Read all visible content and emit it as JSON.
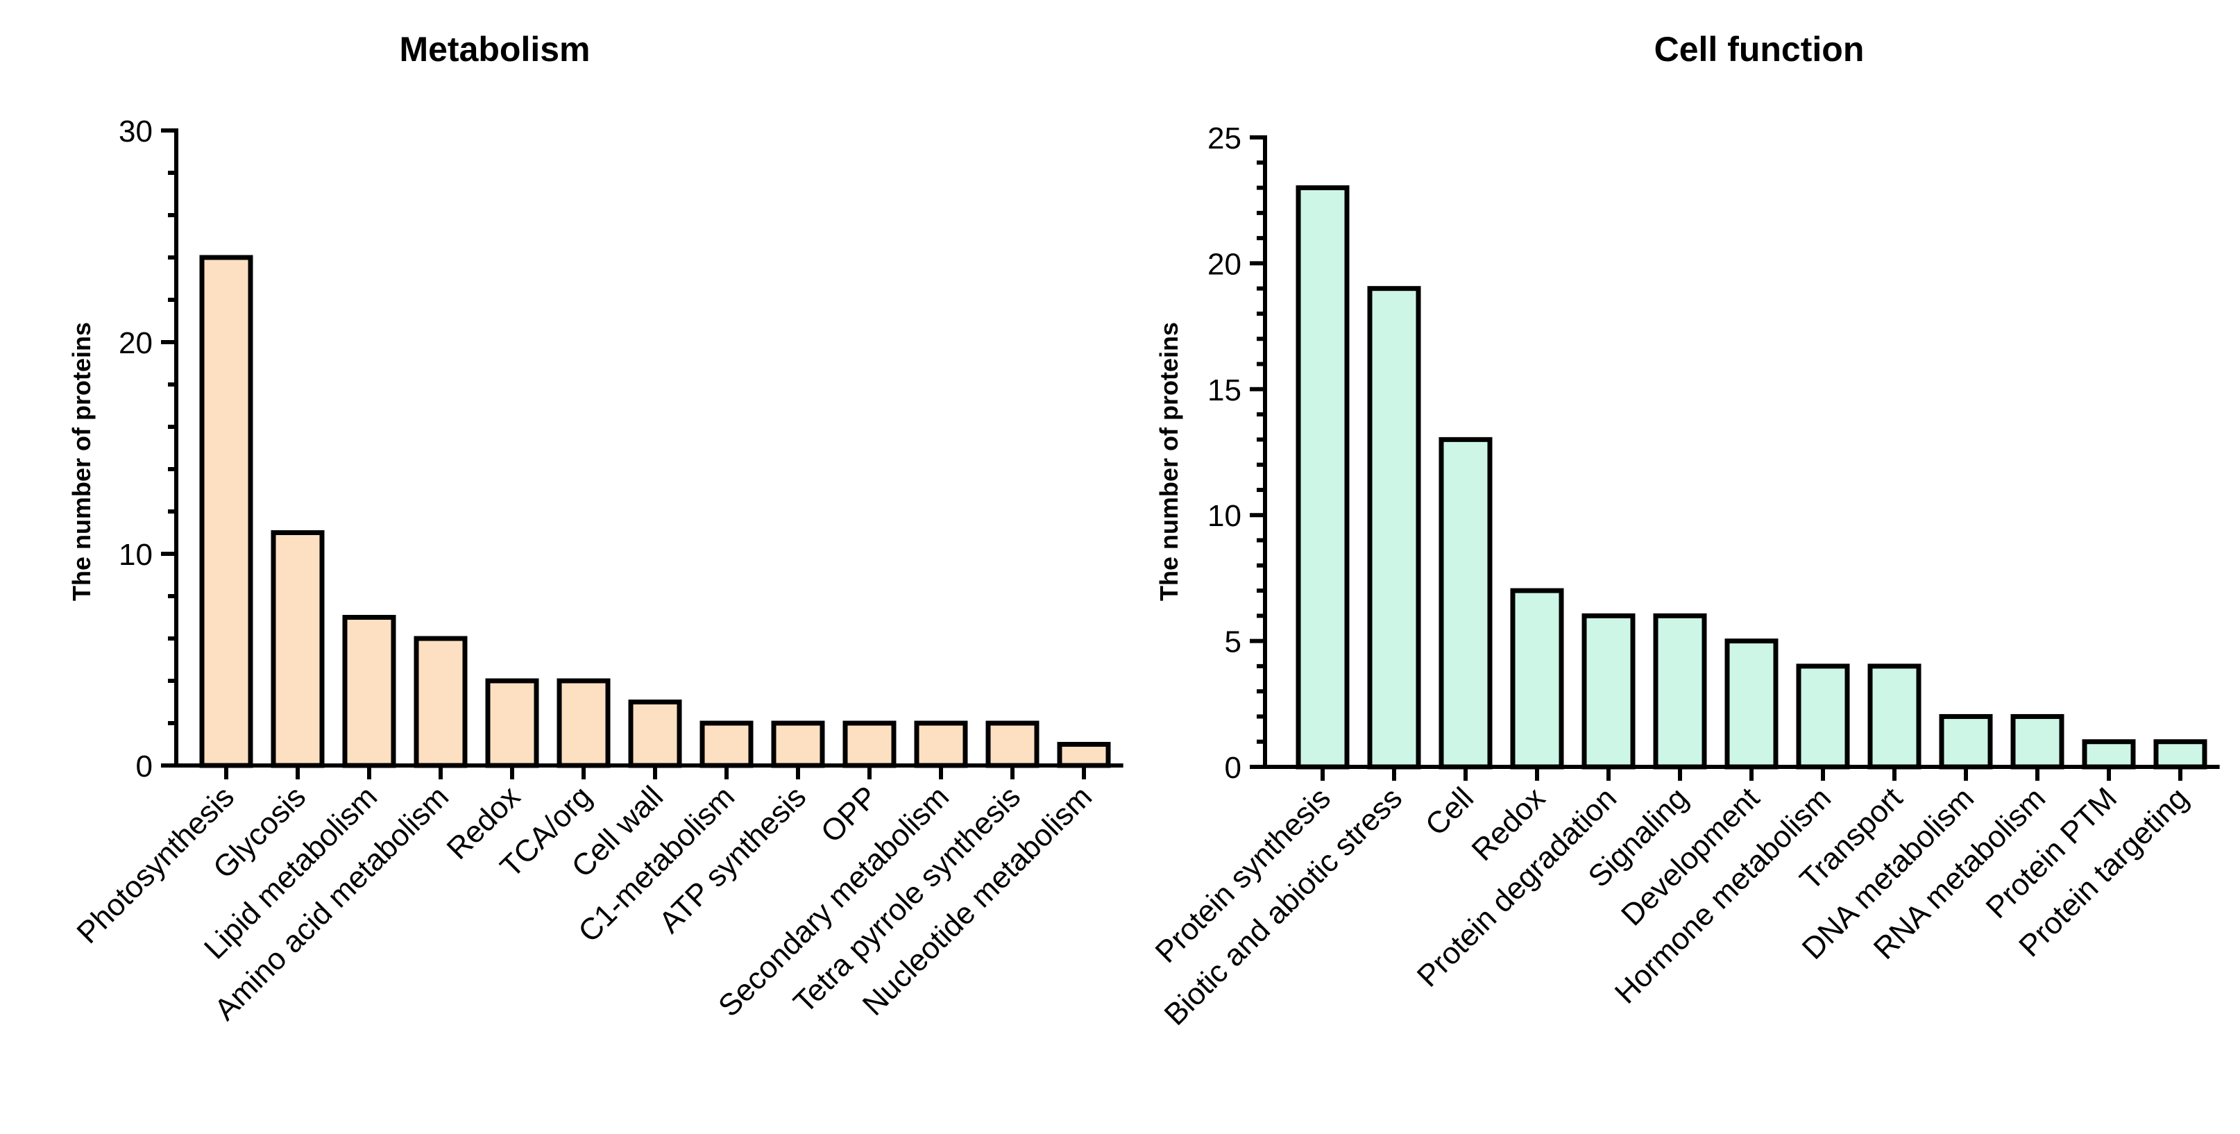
{
  "chart_data": [
    {
      "type": "bar",
      "title": "Metabolism",
      "ylabel": "The number of proteins",
      "xlabel": "",
      "ylim": [
        0,
        30
      ],
      "yticks": [
        0,
        10,
        20,
        30
      ],
      "minor_tick_step": 2,
      "bar_color": "#fde0c1",
      "categories": [
        "Photosynthesis",
        "Glycosis",
        "Lipid metabolism",
        "Amino acid metabolism",
        "Redox",
        "TCA/org",
        "Cell wall",
        "C1-metabolism",
        "ATP synthesis",
        "OPP",
        "Secondary metabolism",
        "Tetra pyrrole synthesis",
        "Nucleotide metabolism"
      ],
      "values": [
        24,
        11,
        7,
        6,
        4,
        4,
        3,
        2,
        2,
        2,
        2,
        2,
        1
      ]
    },
    {
      "type": "bar",
      "title": "Cell function",
      "ylabel": "The number of proteins",
      "xlabel": "",
      "ylim": [
        0,
        25
      ],
      "yticks": [
        0,
        5,
        10,
        15,
        20,
        25
      ],
      "minor_tick_step": 1,
      "bar_color": "#cdf6e7",
      "categories": [
        "Protein synthesis",
        "Biotic and abiotic stress",
        "Cell",
        "Redox",
        "Protein degradation",
        "Signaling",
        "Development",
        "Hormone metabolism",
        "Transport",
        "DNA metabolism",
        "RNA metabolism",
        "Protein PTM",
        "Protein targeting"
      ],
      "values": [
        23,
        19,
        13,
        7,
        6,
        6,
        5,
        4,
        4,
        2,
        2,
        1,
        1
      ]
    }
  ]
}
